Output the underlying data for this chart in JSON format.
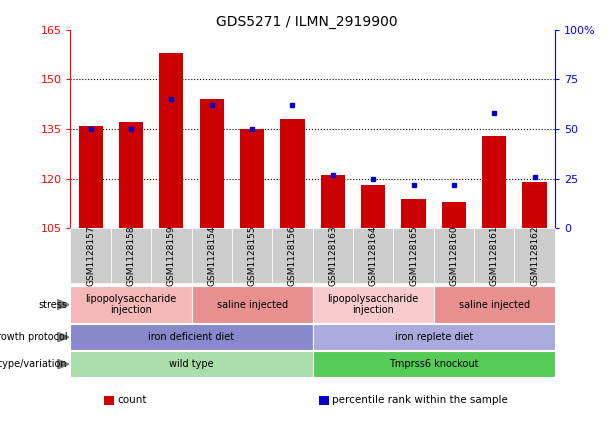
{
  "title": "GDS5271 / ILMN_2919900",
  "samples": [
    "GSM1128157",
    "GSM1128158",
    "GSM1128159",
    "GSM1128154",
    "GSM1128155",
    "GSM1128156",
    "GSM1128163",
    "GSM1128164",
    "GSM1128165",
    "GSM1128160",
    "GSM1128161",
    "GSM1128162"
  ],
  "count_values": [
    136,
    137,
    158,
    144,
    135,
    138,
    121,
    118,
    114,
    113,
    133,
    119
  ],
  "percentile_values": [
    50,
    50,
    65,
    62,
    50,
    62,
    27,
    25,
    22,
    22,
    58,
    26
  ],
  "y_min": 105,
  "y_max": 165,
  "y_ticks_left": [
    105,
    120,
    135,
    150,
    165
  ],
  "y_ticks_right": [
    0,
    25,
    50,
    75,
    100
  ],
  "bar_color": "#cc0000",
  "dot_color": "#0000cc",
  "annotation_rows": [
    {
      "label": "genotype/variation",
      "segments": [
        {
          "text": "wild type",
          "start": 0,
          "end": 6,
          "color": "#aaddaa"
        },
        {
          "text": "Tmprss6 knockout",
          "start": 6,
          "end": 12,
          "color": "#55cc55"
        }
      ]
    },
    {
      "label": "growth protocol",
      "segments": [
        {
          "text": "iron deficient diet",
          "start": 0,
          "end": 6,
          "color": "#8888cc"
        },
        {
          "text": "iron replete diet",
          "start": 6,
          "end": 12,
          "color": "#aaaadd"
        }
      ]
    },
    {
      "label": "stress",
      "segments": [
        {
          "text": "lipopolysaccharide\ninjection",
          "start": 0,
          "end": 3,
          "color": "#f4b8b8"
        },
        {
          "text": "saline injected",
          "start": 3,
          "end": 6,
          "color": "#e89090"
        },
        {
          "text": "lipopolysaccharide\ninjection",
          "start": 6,
          "end": 9,
          "color": "#f8cccc"
        },
        {
          "text": "saline injected",
          "start": 9,
          "end": 12,
          "color": "#e89090"
        }
      ]
    }
  ],
  "legend_items": [
    {
      "label": "count",
      "color": "#cc0000"
    },
    {
      "label": "percentile rank within the sample",
      "color": "#0000cc"
    }
  ]
}
